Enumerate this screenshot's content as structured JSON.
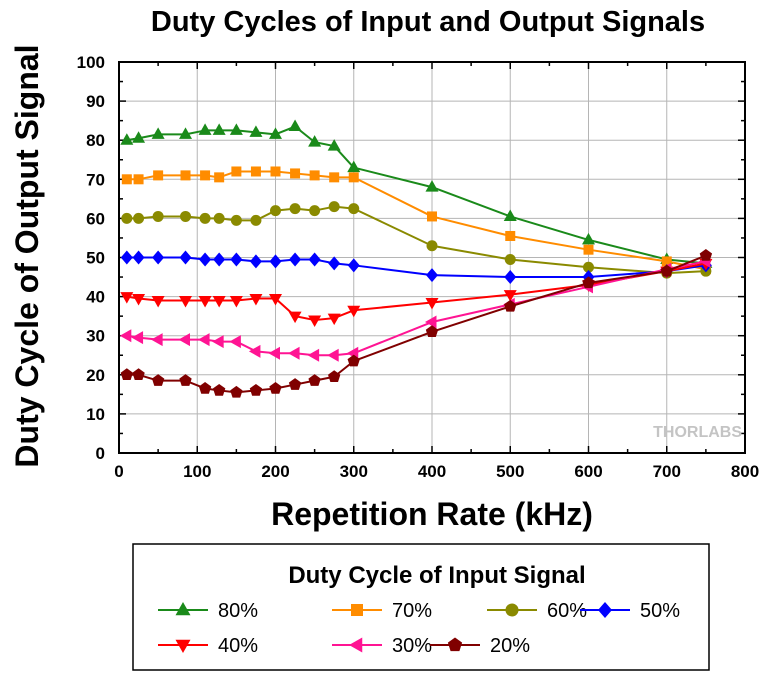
{
  "chart_data": {
    "type": "line",
    "title": "Duty Cycles of Input and Output Signals",
    "xlabel": "Repetition Rate (kHz)",
    "ylabel": "Duty Cycle of Output Signal",
    "xlim": [
      0,
      800
    ],
    "ylim": [
      0,
      100
    ],
    "xticks": [
      "0",
      "100",
      "200",
      "300",
      "400",
      "500",
      "600",
      "700",
      "800"
    ],
    "yticks": [
      "0",
      "10",
      "20",
      "30",
      "40",
      "50",
      "60",
      "70",
      "80",
      "90",
      "100"
    ],
    "grid": true,
    "watermark": "THORLABS",
    "legend": {
      "title": "Duty Cycle of Input Signal",
      "placement": "bottom"
    },
    "series": [
      {
        "name": "80%",
        "color": "#1a8a1a",
        "marker": "triangle-up",
        "x": [
          10,
          25,
          50,
          85,
          110,
          128,
          150,
          175,
          200,
          225,
          250,
          275,
          300,
          400,
          500,
          600,
          700,
          750
        ],
        "y": [
          80,
          80.5,
          81.5,
          81.5,
          82.5,
          82.5,
          82.5,
          82,
          81.5,
          83.5,
          79.5,
          78.5,
          73,
          68,
          60.5,
          54.5,
          49.5,
          48.5
        ]
      },
      {
        "name": "70%",
        "color": "#ff8c00",
        "marker": "square",
        "x": [
          10,
          25,
          50,
          85,
          110,
          128,
          150,
          175,
          200,
          225,
          250,
          275,
          300,
          400,
          500,
          600,
          700,
          750
        ],
        "y": [
          70,
          70,
          71,
          71,
          71,
          70.5,
          72,
          72,
          72,
          71.5,
          71,
          70.5,
          70.5,
          60.5,
          55.5,
          52,
          49,
          47
        ]
      },
      {
        "name": "60%",
        "color": "#8a8a00",
        "marker": "circle",
        "x": [
          10,
          25,
          50,
          85,
          110,
          128,
          150,
          175,
          200,
          225,
          250,
          275,
          300,
          400,
          500,
          600,
          700,
          750
        ],
        "y": [
          60,
          60,
          60.5,
          60.5,
          60,
          60,
          59.5,
          59.5,
          62,
          62.5,
          62,
          63,
          62.5,
          53,
          49.5,
          47.5,
          46,
          46.5
        ]
      },
      {
        "name": "50%",
        "color": "#0000ff",
        "marker": "diamond",
        "x": [
          10,
          25,
          50,
          85,
          110,
          128,
          150,
          175,
          200,
          225,
          250,
          275,
          300,
          400,
          500,
          600,
          700,
          750
        ],
        "y": [
          50,
          50,
          50,
          50,
          49.5,
          49.5,
          49.5,
          49,
          49,
          49.5,
          49.5,
          48.5,
          48,
          45.5,
          45,
          45,
          46.5,
          48
        ]
      },
      {
        "name": "40%",
        "color": "#ff0000",
        "marker": "triangle-down",
        "x": [
          10,
          25,
          50,
          85,
          110,
          128,
          150,
          175,
          200,
          225,
          250,
          275,
          300,
          400,
          500,
          600,
          700,
          750
        ],
        "y": [
          40,
          39.5,
          39,
          39,
          39,
          39,
          39,
          39.5,
          39.5,
          35,
          34,
          34.5,
          36.5,
          38.5,
          40.5,
          43,
          46.5,
          48.5
        ]
      },
      {
        "name": "30%",
        "color": "#ff1493",
        "marker": "triangle-left",
        "x": [
          10,
          25,
          50,
          85,
          110,
          128,
          150,
          175,
          200,
          225,
          250,
          275,
          300,
          400,
          500,
          600,
          700,
          750
        ],
        "y": [
          30,
          29.5,
          29,
          29,
          29,
          28.5,
          28.5,
          26,
          25.5,
          25.5,
          25,
          25,
          25.5,
          33.5,
          38,
          42.5,
          47,
          49
        ]
      },
      {
        "name": "20%",
        "color": "#800000",
        "marker": "pentagon",
        "x": [
          10,
          25,
          50,
          85,
          110,
          128,
          150,
          175,
          200,
          225,
          250,
          275,
          300,
          400,
          500,
          600,
          700,
          750
        ],
        "y": [
          20,
          20,
          18.5,
          18.5,
          16.5,
          16,
          15.5,
          16,
          16.5,
          17.5,
          18.5,
          19.5,
          23.5,
          31,
          37.5,
          43.5,
          46.5,
          50.5
        ]
      }
    ]
  }
}
